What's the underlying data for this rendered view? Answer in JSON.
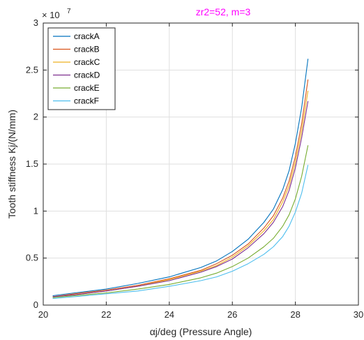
{
  "chart_data": {
    "type": "line",
    "title": "zr2=52, m=3",
    "xlabel": "αj/deg (Pressure Angle)",
    "ylabel": "Tooth stiffness Kj/(N/mm)",
    "xlim": [
      20,
      30
    ],
    "ylim": [
      0,
      3
    ],
    "y_exponent_label": "× 10",
    "y_exponent": "7",
    "x_ticks": [
      20,
      22,
      24,
      26,
      28,
      30
    ],
    "x_tick_labels": [
      "20",
      "22",
      "24",
      "26",
      "28",
      "30"
    ],
    "y_ticks": [
      0,
      0.5,
      1,
      1.5,
      2,
      2.5,
      3
    ],
    "y_tick_labels": [
      "0",
      "0.5",
      "1",
      "1.5",
      "2",
      "2.5",
      "3"
    ],
    "grid": true,
    "legend_position": "top-left",
    "series": [
      {
        "name": "crackA",
        "color": "#0072bd",
        "x": [
          20.3,
          21,
          22,
          23,
          24,
          25,
          25.5,
          26,
          26.5,
          27,
          27.3,
          27.6,
          27.8,
          28.0,
          28.2,
          28.4
        ],
        "y": [
          0.1,
          0.13,
          0.17,
          0.23,
          0.3,
          0.4,
          0.47,
          0.57,
          0.7,
          0.88,
          1.02,
          1.23,
          1.43,
          1.72,
          2.1,
          2.62
        ]
      },
      {
        "name": "crackB",
        "color": "#d95319",
        "x": [
          20.3,
          21,
          22,
          23,
          24,
          25,
          25.5,
          26,
          26.5,
          27,
          27.3,
          27.6,
          27.8,
          28.0,
          28.2,
          28.4
        ],
        "y": [
          0.09,
          0.12,
          0.16,
          0.21,
          0.28,
          0.37,
          0.44,
          0.53,
          0.65,
          0.82,
          0.95,
          1.14,
          1.32,
          1.58,
          1.93,
          2.4
        ]
      },
      {
        "name": "crackC",
        "color": "#edb120",
        "x": [
          20.3,
          21,
          22,
          23,
          24,
          25,
          25.5,
          26,
          26.5,
          27,
          27.3,
          27.6,
          27.8,
          28.0,
          28.2,
          28.4
        ],
        "y": [
          0.09,
          0.11,
          0.15,
          0.2,
          0.27,
          0.36,
          0.42,
          0.51,
          0.63,
          0.79,
          0.91,
          1.1,
          1.27,
          1.52,
          1.85,
          2.28
        ]
      },
      {
        "name": "crackD",
        "color": "#7e2f8e",
        "x": [
          20.3,
          21,
          22,
          23,
          24,
          25,
          25.5,
          26,
          26.5,
          27,
          27.3,
          27.6,
          27.8,
          28.0,
          28.2,
          28.4
        ],
        "y": [
          0.09,
          0.11,
          0.15,
          0.2,
          0.26,
          0.35,
          0.41,
          0.49,
          0.61,
          0.76,
          0.88,
          1.05,
          1.22,
          1.46,
          1.78,
          2.17
        ]
      },
      {
        "name": "crackE",
        "color": "#77ac30",
        "x": [
          20.3,
          21,
          22,
          23,
          24,
          25,
          25.5,
          26,
          26.5,
          27,
          27.3,
          27.6,
          27.8,
          28.0,
          28.2,
          28.4
        ],
        "y": [
          0.08,
          0.1,
          0.13,
          0.17,
          0.22,
          0.29,
          0.34,
          0.41,
          0.5,
          0.62,
          0.71,
          0.84,
          0.96,
          1.13,
          1.37,
          1.7
        ]
      },
      {
        "name": "crackF",
        "color": "#4dbeee",
        "x": [
          20.3,
          21,
          22,
          23,
          24,
          25,
          25.5,
          26,
          26.5,
          27,
          27.3,
          27.6,
          27.8,
          28.0,
          28.2,
          28.4
        ],
        "y": [
          0.07,
          0.09,
          0.12,
          0.15,
          0.2,
          0.26,
          0.3,
          0.36,
          0.44,
          0.54,
          0.62,
          0.73,
          0.84,
          0.99,
          1.19,
          1.49
        ]
      }
    ]
  }
}
